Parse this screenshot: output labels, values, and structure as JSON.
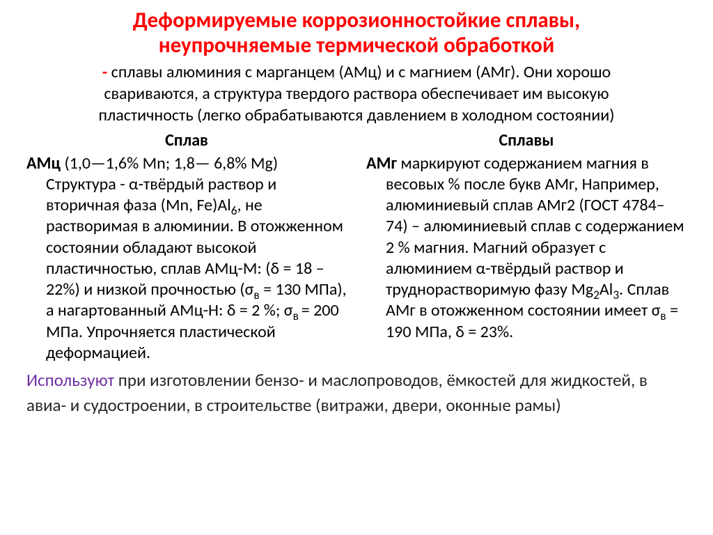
{
  "colors": {
    "title": "#ff0000",
    "intro_dash": "#ff0000",
    "body": "#000000",
    "footer_lead": "#7030a0",
    "footer_rest": "#262626"
  },
  "fonts": {
    "title_size": "31px",
    "intro_size": "24px",
    "col_size": "24px",
    "footer_size": "25px"
  },
  "title": {
    "line1": "Деформируемые коррозионностойкие сплавы,",
    "line2": "неупрочняемые термической обработкой"
  },
  "intro": {
    "dash": "-",
    "line1_rest": "   сплавы алюминия с марганцем (АМц) и с магнием (АМг). Они хорошо",
    "line2": "свариваются, а структура твердого раствора обеспечивает им высокую",
    "line3": "пластичность (легко обрабатываются давлением в холодном состоянии)"
  },
  "left": {
    "heading": "Сплав",
    "lead": "АМц",
    "rest1": " (1,0—1,6% Mn; 1,8— 6,8% Mg) Структура - α-твёрдый раствор и вторичная фаза (Mn, Fe)Al",
    "sub1": "6",
    "rest2": ", не растворимая в алюминии. В отожженном состоянии обладают высокой пластичностью, сплав АМц-М: (δ = 18 – 22%) и низкой прочностью (σ",
    "sub2": "в",
    "rest3": " = 130 МПа), а нагартованный АМц-Н: δ = 2 %; σ",
    "sub3": "в ",
    "rest4": "= 200 МПа. Упрочняется пластической деформацией."
  },
  "right": {
    "heading": "Сплавы",
    "lead": "АМг",
    "rest1": " маркируют содержанием магния в весовых % после букв АМг, Например, алюминиевый сплав АМг2 (ГОСТ 4784–74) – алюминиевый сплав с содержанием 2 % магния. Магний образует с алюминием α-твёрдый раствор и труднорастворимую фазу Mg",
    "sub1": "2",
    "mid1": "Al",
    "sub2": "3",
    "rest2": ". Сплав АМг в отожженном состоянии имеет σ",
    "sub3": "в",
    "rest3": " = 190 МПа, δ = 23%."
  },
  "footer": {
    "lead": "Используют",
    "rest": " при изготовлении бензо- и маслопроводов, ёмкостей для жидкостей, в авиа- и судостроении, в строительстве (витражи, двери, оконные рамы)"
  }
}
